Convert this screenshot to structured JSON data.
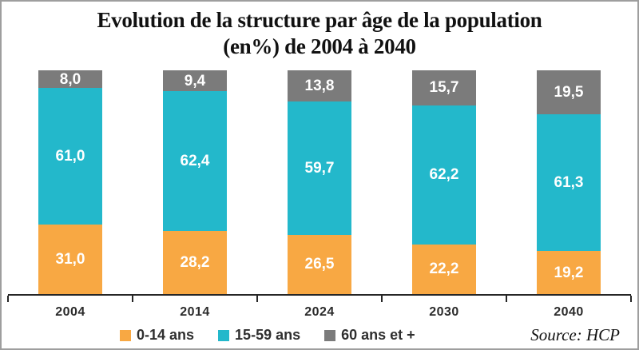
{
  "header": {
    "title_line1": "Evolution de la structure par âge de la population",
    "title_line2": "(en%) de 2004 à 2040"
  },
  "chart_data": {
    "type": "bar",
    "stacked": true,
    "title": "Evolution de la structure par âge de la population (en%) de 2004 à 2040",
    "unit": "%",
    "ylim": [
      0,
      100
    ],
    "grid": false,
    "legend_position": "bottom",
    "categories": [
      "2004",
      "2014",
      "2024",
      "2030",
      "2040"
    ],
    "series": [
      {
        "name": "0-14 ans",
        "color": "#F8A843",
        "values": [
          31.0,
          28.2,
          26.5,
          22.2,
          19.2
        ],
        "display": [
          "31,0",
          "28,2",
          "26,5",
          "22,2",
          "19,2"
        ]
      },
      {
        "name": "15-59 ans",
        "color": "#23B8CB",
        "values": [
          61.0,
          62.4,
          59.7,
          62.2,
          61.3
        ],
        "display": [
          "61,0",
          "62,4",
          "59,7",
          "62,2",
          "61,3"
        ]
      },
      {
        "name": "60 ans et +",
        "color": "#7B7B7B",
        "values": [
          8.0,
          9.4,
          13.8,
          15.7,
          19.5
        ],
        "display": [
          "8,0",
          "9,4",
          "13,8",
          "15,7",
          "19,5"
        ]
      }
    ],
    "source": "Source: HCP"
  },
  "colors": {
    "axis": "#262626",
    "border": "#9E9E9E",
    "value_label_text": "#FFFFFF",
    "year_text": "#2B2B2B"
  }
}
